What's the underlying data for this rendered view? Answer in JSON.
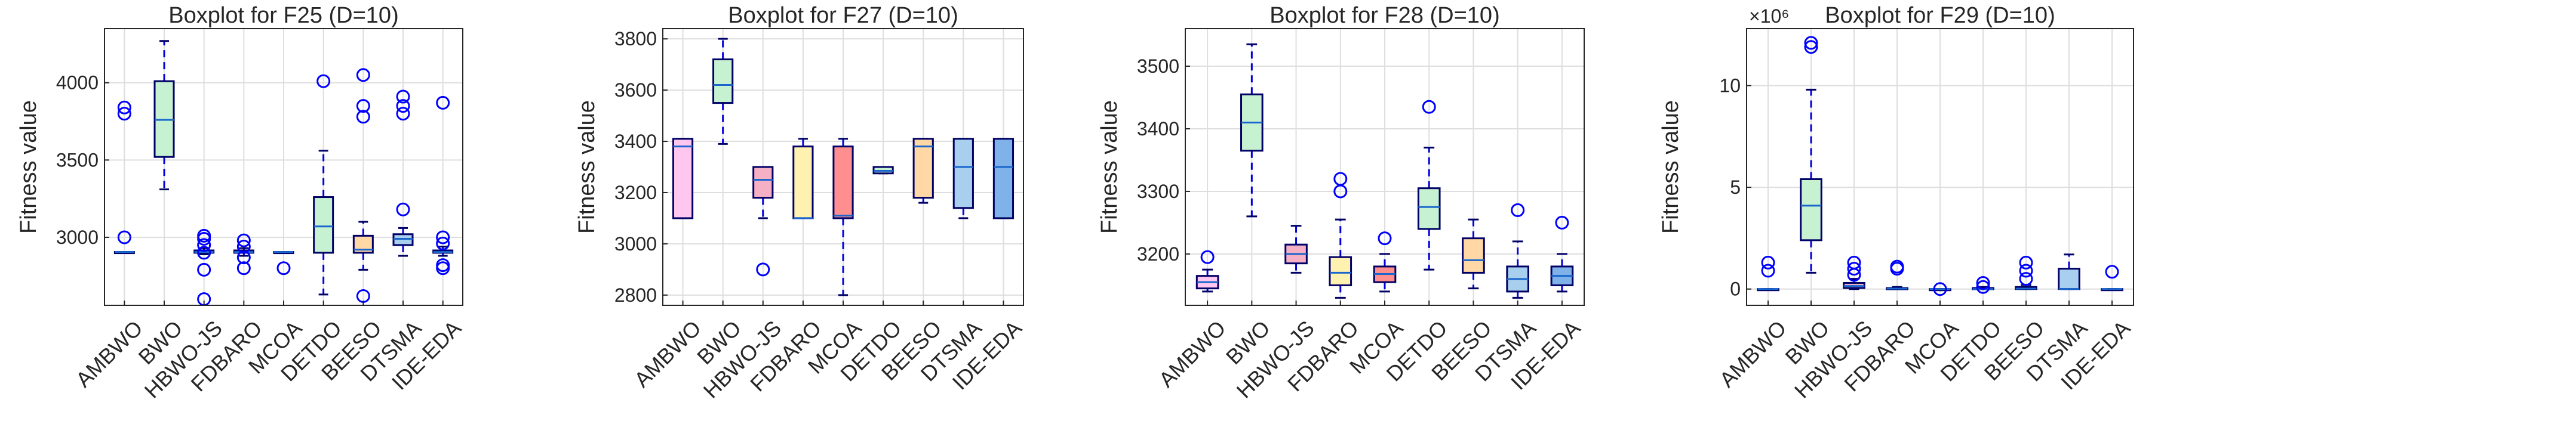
{
  "chart_data": [
    {
      "type": "boxplot",
      "title": "Boxplot for F25 (D=10)",
      "ylabel": "Fitness value",
      "xlabel": "",
      "ylim": [
        2560,
        4350
      ],
      "yticks": [
        3000,
        3500,
        4000
      ],
      "ytick_labels": [
        "3000",
        "3500",
        "4000"
      ],
      "exponent_label": "",
      "grid": true,
      "categories": [
        "AMBWO",
        "BWO",
        "HBWO-JS",
        "FDBARO",
        "MCOA",
        "DETDO",
        "BEESO",
        "DTSMA",
        "IDE-EDA"
      ],
      "boxes": [
        {
          "q1": 2905,
          "median": 2905,
          "q3": 2905,
          "whisker_low": 2905,
          "whisker_high": 2905,
          "outliers": [
            3000,
            3800,
            3840
          ]
        },
        {
          "q1": 3520,
          "median": 3760,
          "q3": 4010,
          "whisker_low": 3310,
          "whisker_high": 4270,
          "outliers": []
        },
        {
          "q1": 2900,
          "median": 2905,
          "q3": 2915,
          "whisker_low": 2890,
          "whisker_high": 2930,
          "outliers": [
            2600,
            2790,
            2900,
            2950,
            2990,
            3010
          ]
        },
        {
          "q1": 2900,
          "median": 2905,
          "q3": 2915,
          "whisker_low": 2880,
          "whisker_high": 2930,
          "outliers": [
            2800,
            2870,
            2940,
            2980
          ]
        },
        {
          "q1": 2905,
          "median": 2905,
          "q3": 2905,
          "whisker_low": 2905,
          "whisker_high": 2905,
          "outliers": [
            2800
          ]
        },
        {
          "q1": 2900,
          "median": 3070,
          "q3": 3260,
          "whisker_low": 2630,
          "whisker_high": 3560,
          "outliers": [
            4010
          ]
        },
        {
          "q1": 2900,
          "median": 2920,
          "q3": 3010,
          "whisker_low": 2790,
          "whisker_high": 3100,
          "outliers": [
            2620,
            3780,
            3850,
            4050
          ]
        },
        {
          "q1": 2950,
          "median": 2990,
          "q3": 3020,
          "whisker_low": 2880,
          "whisker_high": 3060,
          "outliers": [
            3180,
            3800,
            3850,
            3910
          ]
        },
        {
          "q1": 2900,
          "median": 2905,
          "q3": 2915,
          "whisker_low": 2880,
          "whisker_high": 2940,
          "outliers": [
            2800,
            2820,
            2960,
            3000,
            3870
          ]
        }
      ]
    },
    {
      "type": "boxplot",
      "title": "Boxplot for F27 (D=10)",
      "ylabel": "Fitness value",
      "xlabel": "",
      "ylim": [
        2760,
        3840
      ],
      "yticks": [
        2800,
        3000,
        3200,
        3400,
        3600,
        3800
      ],
      "ytick_labels": [
        "2800",
        "3000",
        "3200",
        "3400",
        "3600",
        "3800"
      ],
      "exponent_label": "",
      "grid": true,
      "categories": [
        "AMBWO",
        "BWO",
        "HBWO-JS",
        "FDBARO",
        "MCOA",
        "DETDO",
        "BEESO",
        "DTSMA",
        "IDE-EDA"
      ],
      "boxes": [
        {
          "q1": 3100,
          "median": 3380,
          "q3": 3410,
          "whisker_low": 3100,
          "whisker_high": 3410,
          "outliers": []
        },
        {
          "q1": 3550,
          "median": 3620,
          "q3": 3720,
          "whisker_low": 3390,
          "whisker_high": 3800,
          "outliers": []
        },
        {
          "q1": 3180,
          "median": 3250,
          "q3": 3300,
          "whisker_low": 3100,
          "whisker_high": 3300,
          "outliers": [
            2900
          ]
        },
        {
          "q1": 3100,
          "median": 3100,
          "q3": 3380,
          "whisker_low": 3100,
          "whisker_high": 3410,
          "outliers": []
        },
        {
          "q1": 3100,
          "median": 3110,
          "q3": 3380,
          "whisker_low": 2800,
          "whisker_high": 3410,
          "outliers": []
        },
        {
          "q1": 3275,
          "median": 3285,
          "q3": 3300,
          "whisker_low": 3275,
          "whisker_high": 3300,
          "outliers": []
        },
        {
          "q1": 3180,
          "median": 3380,
          "q3": 3410,
          "whisker_low": 3160,
          "whisker_high": 3410,
          "outliers": []
        },
        {
          "q1": 3140,
          "median": 3300,
          "q3": 3410,
          "whisker_low": 3100,
          "whisker_high": 3410,
          "outliers": []
        },
        {
          "q1": 3100,
          "median": 3300,
          "q3": 3410,
          "whisker_low": 3100,
          "whisker_high": 3410,
          "outliers": []
        }
      ]
    },
    {
      "type": "boxplot",
      "title": "Boxplot for F28 (D=10)",
      "ylabel": "Fitness value",
      "xlabel": "",
      "ylim": [
        3118,
        3560
      ],
      "yticks": [
        3200,
        3300,
        3400,
        3500
      ],
      "ytick_labels": [
        "3200",
        "3300",
        "3400",
        "3500"
      ],
      "exponent_label": "",
      "grid": true,
      "categories": [
        "AMBWO",
        "BWO",
        "HBWO-JS",
        "FDBARO",
        "MCOA",
        "DETDO",
        "BEESO",
        "DTSMA",
        "IDE-EDA"
      ],
      "boxes": [
        {
          "q1": 3145,
          "median": 3155,
          "q3": 3165,
          "whisker_low": 3140,
          "whisker_high": 3175,
          "outliers": [
            3195
          ]
        },
        {
          "q1": 3365,
          "median": 3410,
          "q3": 3455,
          "whisker_low": 3260,
          "whisker_high": 3535,
          "outliers": []
        },
        {
          "q1": 3185,
          "median": 3200,
          "q3": 3215,
          "whisker_low": 3170,
          "whisker_high": 3245,
          "outliers": []
        },
        {
          "q1": 3150,
          "median": 3170,
          "q3": 3195,
          "whisker_low": 3130,
          "whisker_high": 3255,
          "outliers": [
            3300,
            3320
          ]
        },
        {
          "q1": 3155,
          "median": 3168,
          "q3": 3180,
          "whisker_low": 3140,
          "whisker_high": 3200,
          "outliers": [
            3225
          ]
        },
        {
          "q1": 3240,
          "median": 3275,
          "q3": 3305,
          "whisker_low": 3175,
          "whisker_high": 3370,
          "outliers": [
            3435
          ]
        },
        {
          "q1": 3170,
          "median": 3190,
          "q3": 3225,
          "whisker_low": 3145,
          "whisker_high": 3255,
          "outliers": []
        },
        {
          "q1": 3140,
          "median": 3160,
          "q3": 3180,
          "whisker_low": 3130,
          "whisker_high": 3220,
          "outliers": [
            3270
          ]
        },
        {
          "q1": 3150,
          "median": 3165,
          "q3": 3180,
          "whisker_low": 3140,
          "whisker_high": 3200,
          "outliers": [
            3250
          ]
        }
      ]
    },
    {
      "type": "boxplot",
      "title": "Boxplot for F29 (D=10)",
      "ylabel": "Fitness value",
      "xlabel": "",
      "ylim": [
        -0.8,
        12.8
      ],
      "yticks": [
        0,
        5,
        10
      ],
      "ytick_labels": [
        "0",
        "5",
        "10"
      ],
      "exponent_label": "×10⁶",
      "grid": true,
      "categories": [
        "AMBWO",
        "BWO",
        "HBWO-JS",
        "FDBARO",
        "MCOA",
        "DETDO",
        "BEESO",
        "DTSMA",
        "IDE-EDA"
      ],
      "boxes": [
        {
          "q1": 0.0,
          "median": 0.0,
          "q3": 0.0,
          "whisker_low": 0.0,
          "whisker_high": 0.0,
          "outliers": [
            0.9,
            1.3
          ]
        },
        {
          "q1": 2.4,
          "median": 4.1,
          "q3": 5.4,
          "whisker_low": 0.8,
          "whisker_high": 9.8,
          "outliers": [
            11.9,
            12.1
          ]
        },
        {
          "q1": 0.05,
          "median": 0.15,
          "q3": 0.3,
          "whisker_low": 0.0,
          "whisker_high": 0.5,
          "outliers": [
            0.7,
            1.0,
            1.3
          ]
        },
        {
          "q1": 0.0,
          "median": 0.02,
          "q3": 0.05,
          "whisker_low": 0.0,
          "whisker_high": 0.1,
          "outliers": [
            1.0,
            1.1
          ]
        },
        {
          "q1": 0.0,
          "median": 0.0,
          "q3": 0.0,
          "whisker_low": 0.0,
          "whisker_high": 0.0,
          "outliers": [
            0.0
          ]
        },
        {
          "q1": 0.0,
          "median": 0.0,
          "q3": 0.05,
          "whisker_low": 0.0,
          "whisker_high": 0.1,
          "outliers": [
            0.1,
            0.3
          ]
        },
        {
          "q1": 0.0,
          "median": 0.02,
          "q3": 0.1,
          "whisker_low": 0.0,
          "whisker_high": 0.2,
          "outliers": [
            0.5,
            0.9,
            1.3
          ]
        },
        {
          "q1": 0.0,
          "median": 0.0,
          "q3": 1.0,
          "whisker_low": 0.0,
          "whisker_high": 1.7,
          "outliers": []
        },
        {
          "q1": 0.0,
          "median": 0.0,
          "q3": 0.0,
          "whisker_low": 0.0,
          "whisker_high": 0.0,
          "outliers": [
            0.85
          ]
        }
      ]
    }
  ],
  "colors": {
    "box_fills": [
      "#ffc6ef",
      "#c6f2d2",
      "#f6b0c6",
      "#fff2b0",
      "#ff8f8f",
      "#c6f2d2",
      "#ffd8a6",
      "#a8d0ee",
      "#7fb2e8"
    ],
    "box_edge": "#000066",
    "median": "#1a66cc",
    "whisker": "#0000dd",
    "outlier": "#0000ff",
    "grid": "#dedede",
    "axis": "#262626"
  }
}
